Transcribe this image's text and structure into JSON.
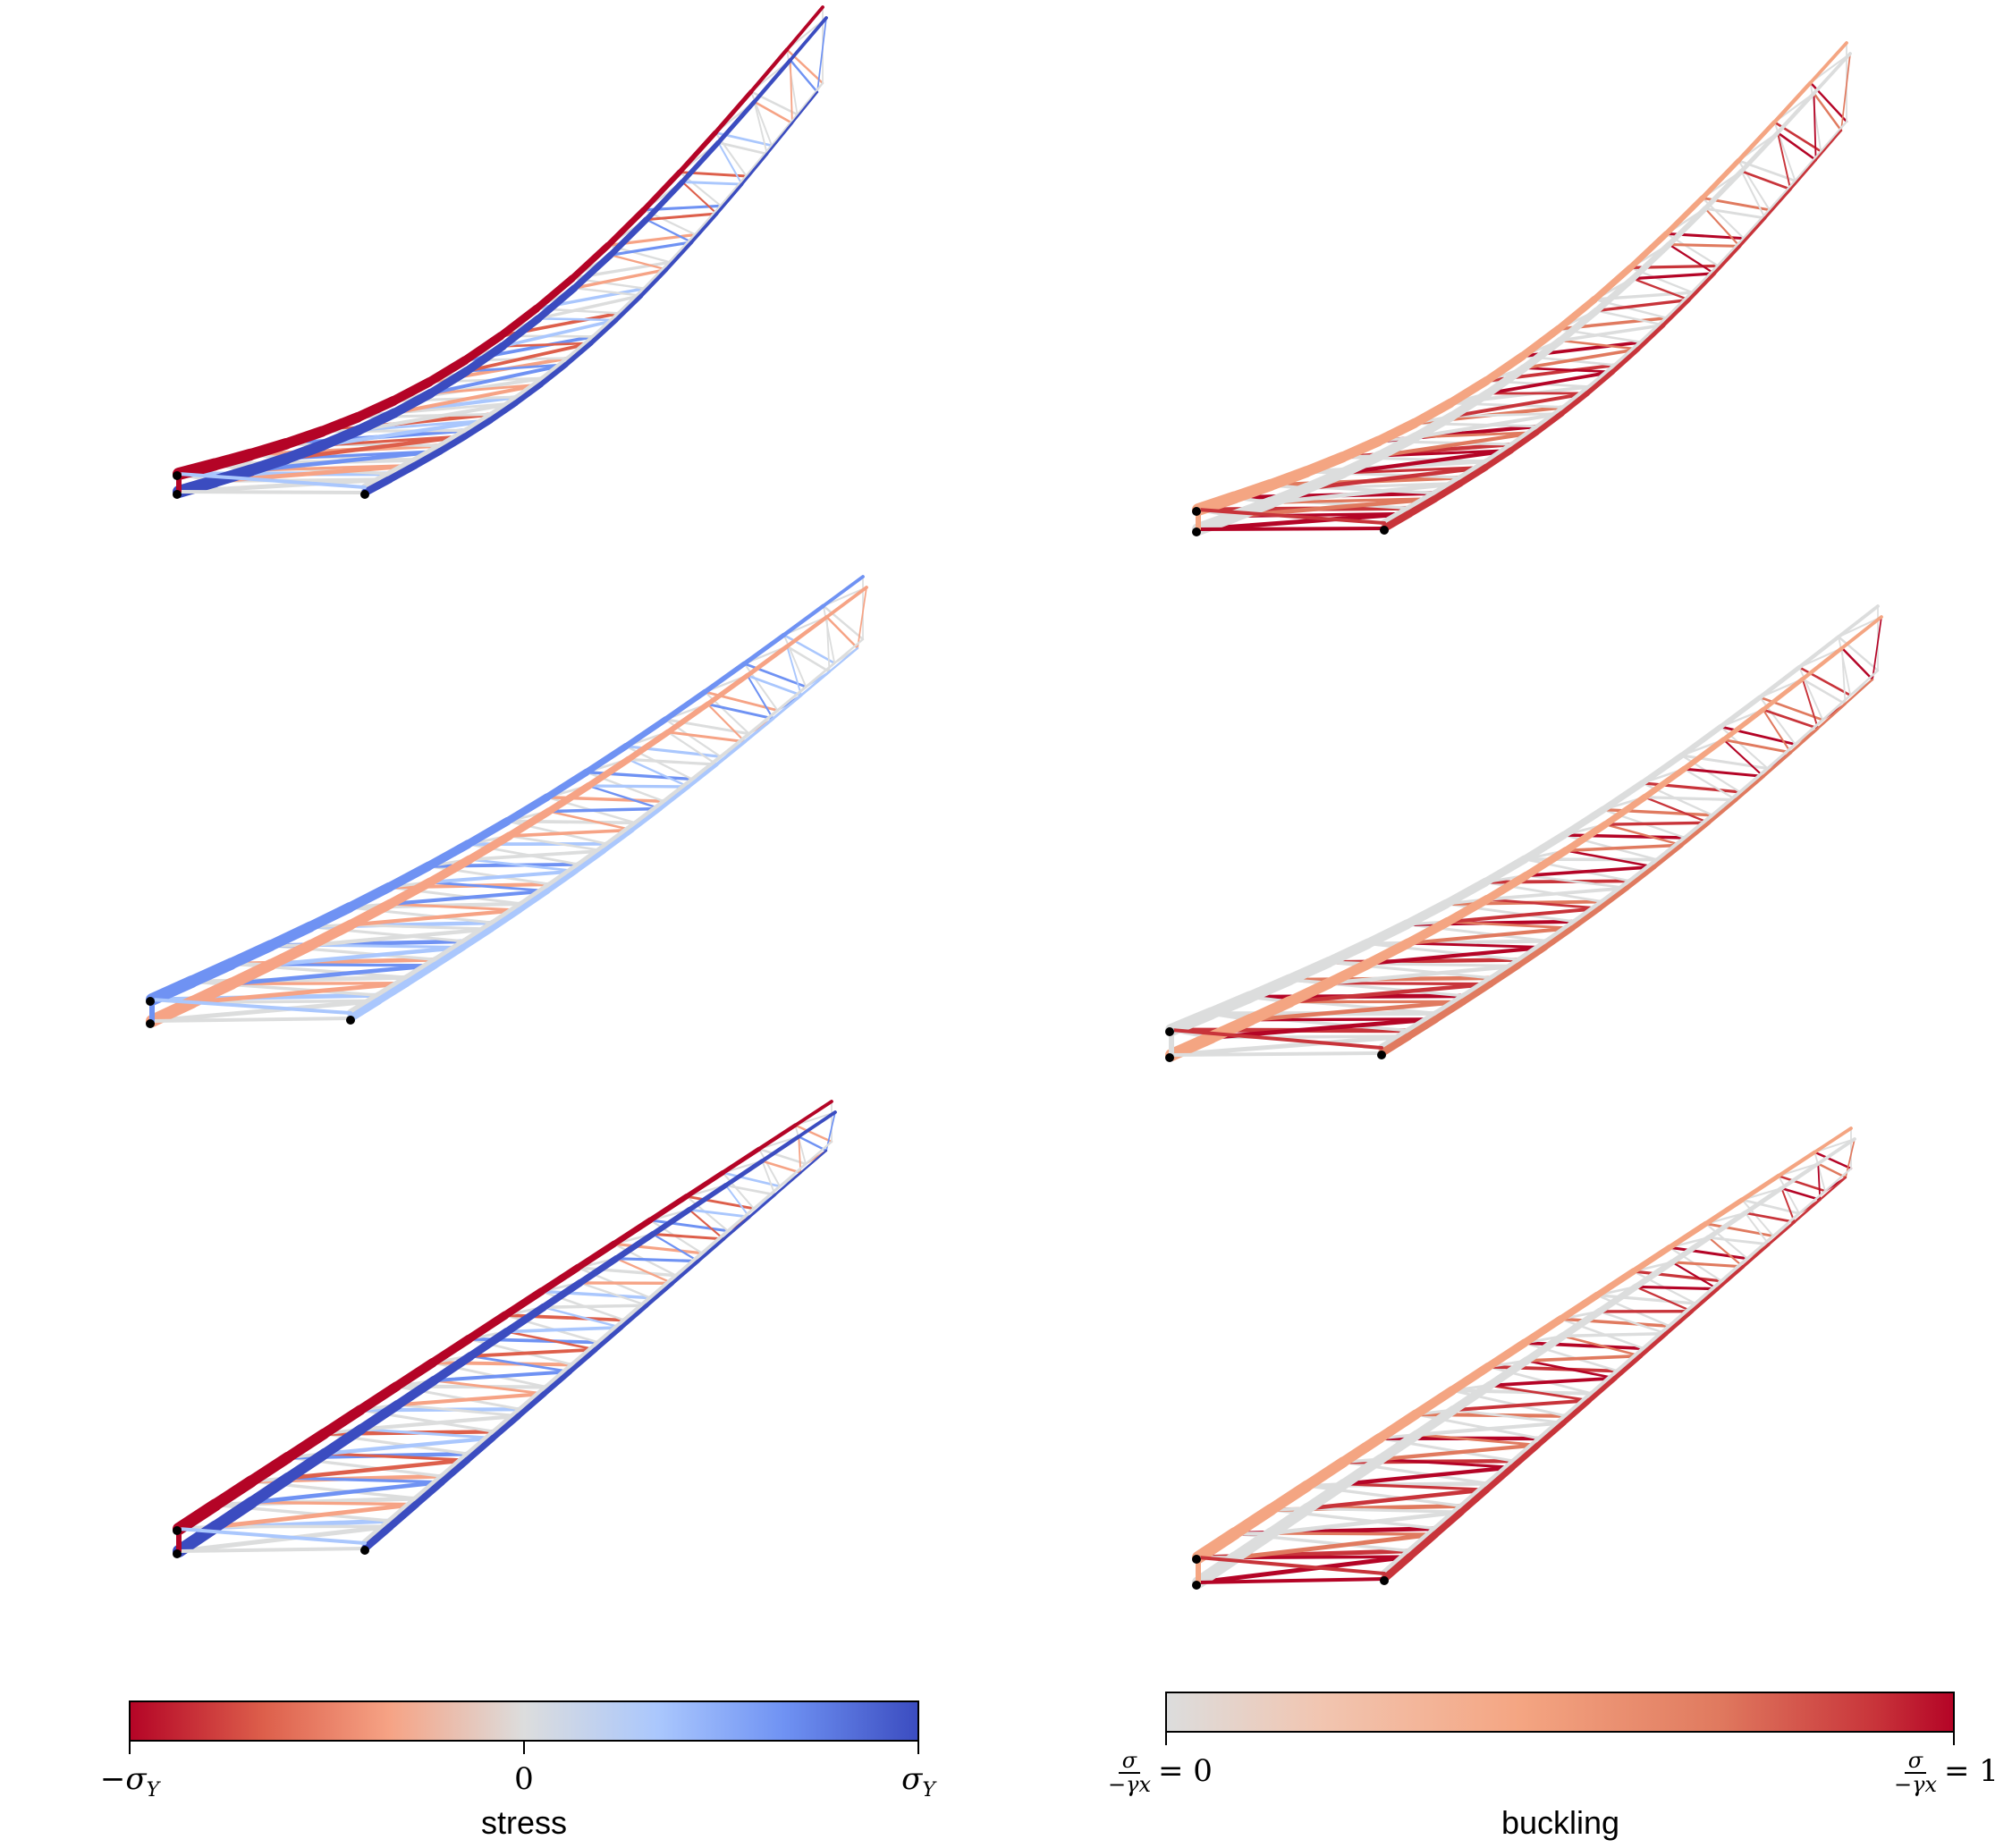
{
  "figure": {
    "panels": [
      {
        "id": "stress-1",
        "kind": "stress",
        "variant": "bend-up-red-top"
      },
      {
        "id": "buckling-1",
        "kind": "buckling",
        "variant": "red-top"
      },
      {
        "id": "stress-2",
        "kind": "stress",
        "variant": "blue-top"
      },
      {
        "id": "buckling-2",
        "kind": "buckling",
        "variant": "red-bottom"
      },
      {
        "id": "stress-3",
        "kind": "stress",
        "variant": "red-top-straight"
      },
      {
        "id": "buckling-3",
        "kind": "buckling",
        "variant": "red-top-straight"
      }
    ],
    "colors": {
      "cmap_stress": [
        "#b40426",
        "#dd5f4b",
        "#f6a385",
        "#dcdddd",
        "#aac7fd",
        "#6f92f3",
        "#3b4cc0"
      ],
      "cmap_buckling": [
        "#dcdddd",
        "#f2c5b0",
        "#f4a582",
        "#e07a5f",
        "#c8343a",
        "#b40426"
      ],
      "support": "#000000"
    }
  },
  "colorbars": {
    "stress": {
      "title": "stress",
      "tick_min": "−σ",
      "tick_min_sub": "Y",
      "tick_mid": "0",
      "tick_max": "σ",
      "tick_max_sub": "Y"
    },
    "buckling": {
      "title": "buckling",
      "frac_num": "σ",
      "frac_den": "−γx",
      "tick_min_value": "= 0",
      "tick_max_value": "= 1"
    }
  }
}
